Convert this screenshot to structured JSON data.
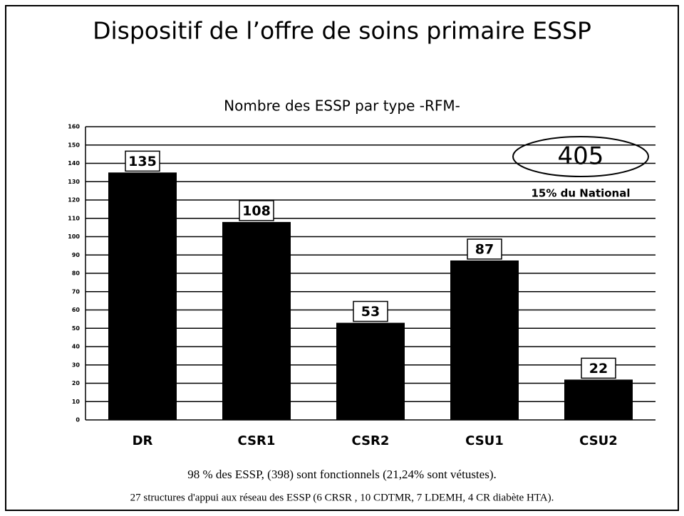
{
  "title": "Dispositif de l’offre de soins primaire ESSP",
  "chart_data": {
    "type": "bar",
    "title": "Nombre des ESSP par type -RFM-",
    "categories": [
      "DR",
      "CSR1",
      "CSR2",
      "CSU1",
      "CSU2"
    ],
    "values": [
      135,
      108,
      53,
      87,
      22
    ],
    "color": "#000000",
    "ylim": [
      0,
      160
    ],
    "yticks": [
      0,
      10,
      20,
      30,
      40,
      50,
      60,
      70,
      80,
      90,
      100,
      110,
      120,
      130,
      140,
      150,
      160
    ],
    "grid": true,
    "annotations": [
      "405",
      "15% du National"
    ]
  },
  "footer": [
    "98 % des ESSP, (398) sont fonctionnels (21,24% sont vétustes).",
    "27 structures d'appui aux réseau des ESSP (6 CRSR , 10 CDTMR, 7 LDEMH, 4 CR diabète HTA)."
  ]
}
